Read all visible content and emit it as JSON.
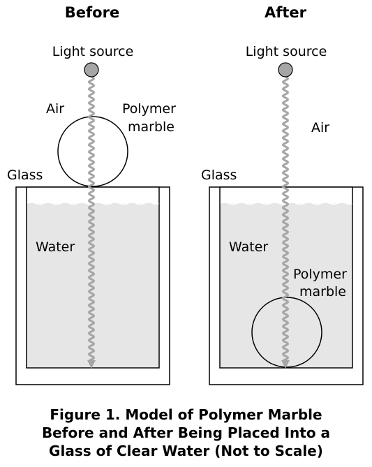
{
  "panels": {
    "before": {
      "title": "Before",
      "light_source_label": "Light source",
      "air_label": "Air",
      "marble_label_line1": "Polymer",
      "marble_label_line2": "marble",
      "glass_label": "Glass",
      "water_label": "Water"
    },
    "after": {
      "title": "After",
      "light_source_label": "Light source",
      "air_label": "Air",
      "marble_label_line1": "Polymer",
      "marble_label_line2": "marble",
      "glass_label": "Glass",
      "water_label": "Water"
    }
  },
  "caption": {
    "line1": "Figure 1.  Model of Polymer Marble",
    "line2": "Before and After Being Placed Into a",
    "line3": "Glass of Clear Water (Not to Scale)"
  },
  "colors": {
    "water": "#e6e6e6",
    "light_source": "#a6a6a6",
    "light_wave": "#a6a6a6",
    "outline": "#000000"
  }
}
